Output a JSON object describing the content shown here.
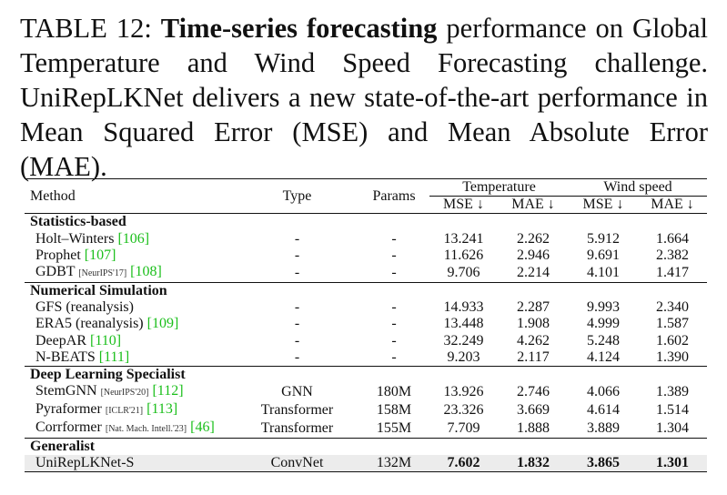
{
  "caption": {
    "label": "TABLE 12:",
    "bold": "Time-series forecasting",
    "text": "performance on Global Temperature and Wind Speed Forecasting challenge. UniRepLKNet delivers a new state-of-the-art performance in Mean Squared Error (MSE) and Mean Absolute Error (MAE)."
  },
  "header": {
    "method": "Method",
    "type": "Type",
    "params": "Params",
    "temperature": "Temperature",
    "wind_speed": "Wind speed",
    "mse": "MSE ↓",
    "mae": "MAE ↓"
  },
  "sections": [
    {
      "title": "Statistics-based",
      "rows": [
        {
          "name": "Holt–Winters",
          "venue": "",
          "ref": "[106]",
          "type": "-",
          "params": "-",
          "t_mse": "13.241",
          "t_mae": "2.262",
          "w_mse": "5.912",
          "w_mae": "1.664"
        },
        {
          "name": "Prophet",
          "venue": "",
          "ref": "[107]",
          "type": "-",
          "params": "-",
          "t_mse": "11.626",
          "t_mae": "2.946",
          "w_mse": "9.691",
          "w_mae": "2.382"
        },
        {
          "name": "GDBT",
          "venue": "[NeurIPS'17]",
          "ref": "[108]",
          "type": "-",
          "params": "-",
          "t_mse": "9.706",
          "t_mae": "2.214",
          "w_mse": "4.101",
          "w_mae": "1.417"
        }
      ]
    },
    {
      "title": "Numerical Simulation",
      "rows": [
        {
          "name": "GFS (reanalysis)",
          "venue": "",
          "ref": "",
          "type": "-",
          "params": "-",
          "t_mse": "14.933",
          "t_mae": "2.287",
          "w_mse": "9.993",
          "w_mae": "2.340"
        },
        {
          "name": "ERA5 (reanalysis)",
          "venue": "",
          "ref": "[109]",
          "type": "-",
          "params": "-",
          "t_mse": "13.448",
          "t_mae": "1.908",
          "w_mse": "4.999",
          "w_mae": "1.587"
        },
        {
          "name": "DeepAR",
          "venue": "",
          "ref": "[110]",
          "type": "-",
          "params": "-",
          "t_mse": "32.249",
          "t_mae": "4.262",
          "w_mse": "5.248",
          "w_mae": "1.602"
        },
        {
          "name": "N-BEATS",
          "venue": "",
          "ref": "[111]",
          "type": "-",
          "params": "-",
          "t_mse": "9.203",
          "t_mae": "2.117",
          "w_mse": "4.124",
          "w_mae": "1.390"
        }
      ]
    },
    {
      "title": "Deep Learning Specialist",
      "rows": [
        {
          "name": "StemGNN",
          "venue": "[NeurIPS'20]",
          "ref": "[112]",
          "type": "GNN",
          "params": "180M",
          "t_mse": "13.926",
          "t_mae": "2.746",
          "w_mse": "4.066",
          "w_mae": "1.389"
        },
        {
          "name": "Pyraformer",
          "venue": "[ICLR'21]",
          "ref": "[113]",
          "type": "Transformer",
          "params": "158M",
          "t_mse": "23.326",
          "t_mae": "3.669",
          "w_mse": "4.614",
          "w_mae": "1.514"
        },
        {
          "name": "Corrformer",
          "venue": "[Nat. Mach. Intell.'23]",
          "ref": "[46]",
          "type": "Transformer",
          "params": "155M",
          "t_mse": "7.709",
          "t_mae": "1.888",
          "w_mse": "3.889",
          "w_mae": "1.304"
        }
      ]
    },
    {
      "title": "Generalist",
      "rows": [
        {
          "name": "UniRepLKNet-S",
          "venue": "",
          "ref": "",
          "type": "ConvNet",
          "params": "132M",
          "t_mse": "7.602",
          "t_mae": "1.832",
          "w_mse": "3.865",
          "w_mae": "1.301",
          "highlight": true
        }
      ]
    }
  ]
}
